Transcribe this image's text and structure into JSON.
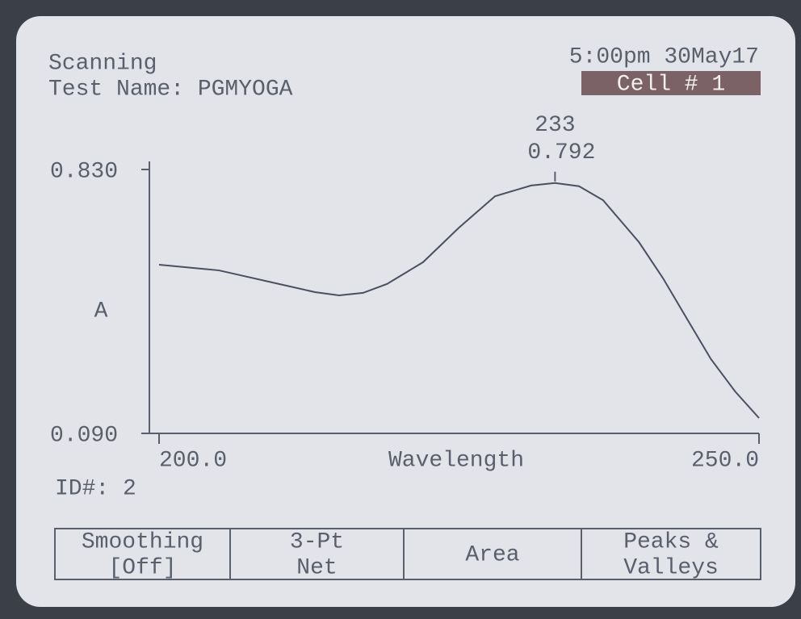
{
  "header": {
    "status": "Scanning",
    "test_name": "Test Name: PGMYOGA",
    "datetime": "5:00pm 30May17",
    "cell": "Cell # 1"
  },
  "chart_data": {
    "type": "line",
    "x_label": "Wavelength",
    "y_label": "A",
    "x": [
      200,
      205,
      210,
      213,
      215,
      217,
      219,
      222,
      225,
      228,
      230,
      231,
      233,
      235,
      237,
      240,
      242,
      244,
      246,
      248,
      250
    ],
    "series": [
      {
        "color": "#4a5060",
        "values": [
          0.563,
          0.547,
          0.509,
          0.486,
          0.477,
          0.484,
          0.509,
          0.57,
          0.667,
          0.755,
          0.775,
          0.785,
          0.792,
          0.783,
          0.744,
          0.626,
          0.525,
          0.411,
          0.298,
          0.208,
          0.133
        ]
      }
    ],
    "xlim": [
      200,
      250
    ],
    "ylim": [
      0.09,
      0.83
    ],
    "xticks": [
      {
        "value": 200,
        "label": "200.0"
      },
      {
        "value": 250,
        "label": "250.0"
      }
    ],
    "yticks": [
      {
        "value": 0.09,
        "label": "0.090"
      },
      {
        "value": 0.83,
        "label": "0.830"
      }
    ],
    "peak": {
      "x": 233,
      "y": 0.792
    }
  },
  "footer": {
    "id": "ID#: 2",
    "buttons": [
      {
        "lines": [
          "Smoothing",
          "[Off]"
        ]
      },
      {
        "lines": [
          "3-Pt",
          "Net"
        ]
      },
      {
        "lines": [
          "Area"
        ]
      },
      {
        "lines": [
          "Peaks &",
          "Valleys"
        ]
      }
    ]
  }
}
